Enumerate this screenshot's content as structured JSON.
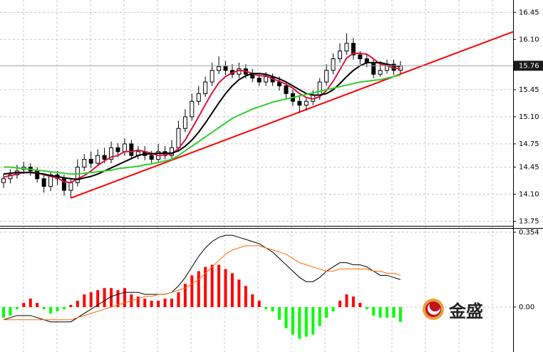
{
  "chart_data": [
    {
      "type": "candlestick",
      "open": [
        14.25,
        14.3,
        14.35,
        14.42,
        14.45,
        14.4,
        14.3,
        14.2,
        14.35,
        14.3,
        14.15,
        14.25,
        14.45,
        14.55,
        14.5,
        14.6,
        14.55,
        14.7,
        14.65,
        14.75,
        14.6,
        14.65,
        14.6,
        14.55,
        14.65,
        14.6,
        14.7,
        14.95,
        15.1,
        15.3,
        15.4,
        15.55,
        15.7,
        15.75,
        15.7,
        15.65,
        15.72,
        15.65,
        15.6,
        15.55,
        15.62,
        15.55,
        15.5,
        15.4,
        15.3,
        15.25,
        15.3,
        15.38,
        15.55,
        15.7,
        15.85,
        15.95,
        16.05,
        15.9,
        15.85,
        15.8,
        15.65,
        15.7,
        15.78,
        15.7
      ],
      "high": [
        14.36,
        14.42,
        14.48,
        14.52,
        14.5,
        14.45,
        14.35,
        14.4,
        14.4,
        14.35,
        14.3,
        14.55,
        14.62,
        14.65,
        14.68,
        14.7,
        14.78,
        14.76,
        14.82,
        14.8,
        14.72,
        14.72,
        14.66,
        14.75,
        14.72,
        14.8,
        15.05,
        15.2,
        15.4,
        15.5,
        15.62,
        15.8,
        15.88,
        15.82,
        15.78,
        15.8,
        15.78,
        15.72,
        15.66,
        15.68,
        15.66,
        15.62,
        15.55,
        15.45,
        15.38,
        15.36,
        15.44,
        15.6,
        15.78,
        15.92,
        16.05,
        16.18,
        16.12,
        15.95,
        15.9,
        15.84,
        15.82,
        15.84,
        15.84,
        15.82
      ],
      "low": [
        14.18,
        14.24,
        14.3,
        14.36,
        14.34,
        14.25,
        14.12,
        14.14,
        14.22,
        14.08,
        14.05,
        14.2,
        14.4,
        14.44,
        14.46,
        14.5,
        14.5,
        14.58,
        14.6,
        14.55,
        14.55,
        14.54,
        14.5,
        14.5,
        14.55,
        14.56,
        14.65,
        14.9,
        15.05,
        15.25,
        15.36,
        15.5,
        15.65,
        15.64,
        15.6,
        15.6,
        15.6,
        15.55,
        15.5,
        15.5,
        15.5,
        15.44,
        15.34,
        15.24,
        15.15,
        15.18,
        15.25,
        15.32,
        15.5,
        15.65,
        15.8,
        15.9,
        15.84,
        15.78,
        15.74,
        15.6,
        15.62,
        15.66,
        15.64,
        15.66
      ],
      "close": [
        14.3,
        14.35,
        14.4,
        14.45,
        14.4,
        14.3,
        14.2,
        14.35,
        14.3,
        14.15,
        14.25,
        14.45,
        14.55,
        14.5,
        14.6,
        14.55,
        14.7,
        14.65,
        14.75,
        14.6,
        14.65,
        14.6,
        14.55,
        14.65,
        14.6,
        14.7,
        14.95,
        15.1,
        15.3,
        15.4,
        15.55,
        15.7,
        15.75,
        15.7,
        15.65,
        15.72,
        15.65,
        15.6,
        15.55,
        15.62,
        15.55,
        15.5,
        15.4,
        15.3,
        15.25,
        15.3,
        15.38,
        15.55,
        15.7,
        15.85,
        15.95,
        16.05,
        15.9,
        15.85,
        15.8,
        15.65,
        15.7,
        15.78,
        15.7,
        15.76
      ],
      "up_color": "#ffffff",
      "down_color": "#000000",
      "lines": [
        {
          "color": "#dc143c",
          "values": [
            14.32,
            14.34,
            14.36,
            14.38,
            14.38,
            14.38,
            14.35,
            14.33,
            14.31,
            14.26,
            14.25,
            14.3,
            14.34,
            14.4,
            14.47,
            14.53,
            14.58,
            14.6,
            14.65,
            14.65,
            14.67,
            14.65,
            14.63,
            14.6,
            14.61,
            14.62,
            14.69,
            14.8,
            14.95,
            15.1,
            15.26,
            15.41,
            15.54,
            15.62,
            15.67,
            15.7,
            15.69,
            15.66,
            15.63,
            15.63,
            15.59,
            15.56,
            15.52,
            15.47,
            15.4,
            15.35,
            15.33,
            15.36,
            15.44,
            15.56,
            15.71,
            15.86,
            15.92,
            15.92,
            15.91,
            15.85,
            15.78,
            15.76,
            15.73,
            15.72
          ]
        },
        {
          "color": "#000000",
          "values": [
            14.36,
            14.37,
            14.38,
            14.38,
            14.38,
            14.37,
            14.36,
            14.34,
            14.33,
            14.31,
            14.3,
            14.29,
            14.31,
            14.33,
            14.36,
            14.4,
            14.44,
            14.48,
            14.52,
            14.56,
            14.6,
            14.62,
            14.62,
            14.63,
            14.63,
            14.63,
            14.66,
            14.72,
            14.8,
            14.9,
            15.02,
            15.15,
            15.28,
            15.4,
            15.5,
            15.58,
            15.63,
            15.66,
            15.66,
            15.65,
            15.62,
            15.59,
            15.55,
            15.5,
            15.45,
            15.4,
            15.38,
            15.38,
            15.4,
            15.45,
            15.53,
            15.62,
            15.7,
            15.76,
            15.8,
            15.8,
            15.8,
            15.78,
            15.76,
            15.75
          ]
        },
        {
          "color": "#32cd32",
          "values": [
            14.45,
            14.45,
            14.44,
            14.43,
            14.42,
            14.41,
            14.4,
            14.39,
            14.38,
            14.37,
            14.36,
            14.36,
            14.37,
            14.38,
            14.39,
            14.4,
            14.41,
            14.43,
            14.44,
            14.45,
            14.46,
            14.48,
            14.49,
            14.51,
            14.53,
            14.55,
            14.6,
            14.66,
            14.72,
            14.78,
            14.84,
            14.9,
            14.96,
            15.02,
            15.08,
            15.12,
            15.16,
            15.2,
            15.23,
            15.26,
            15.29,
            15.31,
            15.33,
            15.35,
            15.37,
            15.39,
            15.41,
            15.43,
            15.45,
            15.47,
            15.49,
            15.51,
            15.53,
            15.55,
            15.56,
            15.57,
            15.58,
            15.6,
            15.62,
            15.64
          ]
        }
      ],
      "trendline": {
        "color": "#ff0000",
        "values": [
          14.05,
          16.2
        ]
      },
      "last_price": 15.76,
      "ylim": [
        13.69,
        16.61
      ],
      "yticks": [
        16.45,
        {
          "value": 16.1,
          "label": "16.10"
        },
        15.45,
        {
          "value": 15.1,
          "label": "15.10"
        },
        14.75,
        14.45,
        {
          "value": 14.1,
          "label": "14.10"
        },
        13.75
      ],
      "grid": true
    },
    {
      "type": "macd",
      "values": [
        -0.05,
        -0.04,
        -0.01,
        0.02,
        0.04,
        0.02,
        -0.01,
        -0.03,
        -0.02,
        -0.01,
        0.01,
        0.03,
        0.06,
        0.07,
        0.08,
        0.09,
        0.09,
        0.08,
        0.09,
        0.06,
        0.05,
        0.04,
        0.03,
        0.03,
        0.04,
        0.04,
        0.07,
        0.11,
        0.15,
        0.17,
        0.19,
        0.2,
        0.2,
        0.18,
        0.16,
        0.13,
        0.1,
        0.06,
        0.03,
        -0.01,
        -0.02,
        -0.06,
        -0.1,
        -0.13,
        -0.15,
        -0.14,
        -0.13,
        -0.09,
        -0.05,
        -0.02,
        0.03,
        0.06,
        0.05,
        0.02,
        -0.01,
        -0.04,
        -0.05,
        -0.05,
        -0.05,
        -0.07
      ],
      "up_color": "#ff0000",
      "down_color": "#00ff00",
      "lines": [
        {
          "color": "#000000",
          "values": [
            -0.06,
            -0.05,
            -0.04,
            -0.04,
            -0.04,
            -0.05,
            -0.06,
            -0.07,
            -0.07,
            -0.07,
            -0.07,
            -0.05,
            -0.03,
            -0.01,
            0.01,
            0.03,
            0.05,
            0.06,
            0.07,
            0.07,
            0.07,
            0.06,
            0.06,
            0.06,
            0.06,
            0.07,
            0.1,
            0.14,
            0.19,
            0.24,
            0.28,
            0.31,
            0.33,
            0.34,
            0.34,
            0.33,
            0.32,
            0.31,
            0.3,
            0.28,
            0.26,
            0.23,
            0.2,
            0.17,
            0.14,
            0.12,
            0.12,
            0.14,
            0.17,
            0.19,
            0.21,
            0.21,
            0.2,
            0.2,
            0.19,
            0.17,
            0.15,
            0.15,
            0.14,
            0.13
          ]
        },
        {
          "color": "#ff6a00",
          "values": [
            -0.06,
            -0.06,
            -0.06,
            -0.06,
            -0.06,
            -0.06,
            -0.06,
            -0.06,
            -0.06,
            -0.06,
            -0.06,
            -0.05,
            -0.04,
            -0.03,
            -0.02,
            -0.01,
            0.0,
            0.01,
            0.02,
            0.03,
            0.04,
            0.05,
            0.05,
            0.06,
            0.06,
            0.07,
            0.08,
            0.09,
            0.11,
            0.13,
            0.16,
            0.19,
            0.22,
            0.25,
            0.27,
            0.28,
            0.29,
            0.29,
            0.29,
            0.28,
            0.27,
            0.26,
            0.25,
            0.23,
            0.21,
            0.2,
            0.19,
            0.18,
            0.17,
            0.17,
            0.18,
            0.18,
            0.18,
            0.18,
            0.18,
            0.17,
            0.17,
            0.16,
            0.16,
            0.15
          ]
        }
      ],
      "ylim": [
        -0.199,
        0.374
      ],
      "yticks": [
        0.354,
        {
          "value": 0,
          "label": "0.00"
        }
      ],
      "grid": true
    }
  ],
  "logo_text": "金盛"
}
